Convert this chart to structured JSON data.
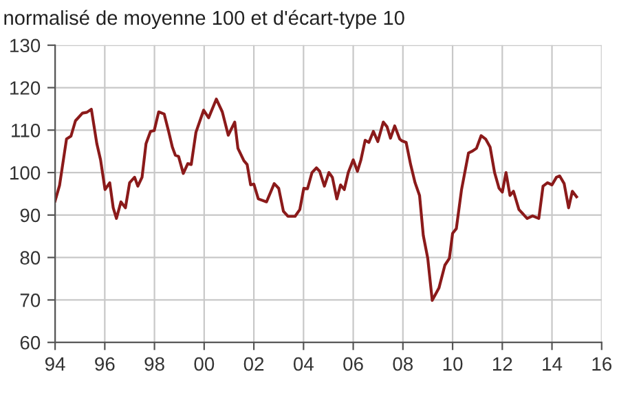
{
  "chart_data": {
    "type": "line",
    "title": "normalisé de moyenne 100 et d'écart-type 10",
    "x": [
      1994.0,
      1994.18,
      1994.46,
      1994.64,
      1994.82,
      1995.1,
      1995.28,
      1995.46,
      1995.68,
      1995.83,
      1996.01,
      1996.2,
      1996.34,
      1996.47,
      1996.65,
      1996.83,
      1997.0,
      1997.2,
      1997.33,
      1997.5,
      1997.66,
      1997.84,
      1997.99,
      1998.17,
      1998.39,
      1998.57,
      1998.72,
      1998.84,
      1998.97,
      1999.16,
      1999.34,
      1999.48,
      1999.67,
      1999.98,
      2000.18,
      2000.49,
      2000.73,
      2000.97,
      2001.23,
      2001.36,
      2001.6,
      2001.73,
      2001.87,
      2002.0,
      2002.18,
      2002.51,
      2002.82,
      2003.0,
      2003.19,
      2003.37,
      2003.66,
      2003.85,
      2004.01,
      2004.16,
      2004.34,
      2004.52,
      2004.65,
      2004.84,
      2005.02,
      2005.16,
      2005.34,
      2005.49,
      2005.64,
      2005.8,
      2006.0,
      2006.17,
      2006.31,
      2006.48,
      2006.63,
      2006.81,
      2006.99,
      2007.21,
      2007.36,
      2007.5,
      2007.67,
      2007.87,
      2007.95,
      2008.13,
      2008.31,
      2008.49,
      2008.67,
      2008.82,
      2009.0,
      2009.18,
      2009.45,
      2009.69,
      2009.87,
      2010.0,
      2010.15,
      2010.36,
      2010.64,
      2010.78,
      2010.96,
      2011.15,
      2011.33,
      2011.51,
      2011.69,
      2011.87,
      2012.0,
      2012.15,
      2012.31,
      2012.45,
      2012.67,
      2013.0,
      2013.22,
      2013.47,
      2013.64,
      2013.82,
      2014.0,
      2014.18,
      2014.31,
      2014.49,
      2014.67,
      2014.82,
      2014.99
    ],
    "series": [
      {
        "color": "#8b1a1a",
        "values": [
          93.3,
          97.0,
          107.9,
          108.6,
          112.2,
          114.0,
          114.2,
          114.9,
          106.8,
          103.0,
          96.0,
          97.6,
          91.7,
          89.2,
          93.1,
          91.7,
          97.6,
          98.9,
          96.8,
          98.9,
          106.8,
          109.7,
          109.9,
          114.3,
          113.8,
          109.7,
          106.0,
          104.1,
          103.8,
          99.8,
          102.1,
          101.9,
          109.5,
          114.7,
          112.9,
          117.3,
          114.3,
          108.8,
          111.9,
          105.7,
          102.8,
          101.9,
          97.1,
          97.3,
          93.8,
          93.1,
          97.4,
          96.3,
          90.9,
          89.7,
          89.7,
          91.3,
          96.3,
          96.2,
          100.0,
          101.1,
          100.3,
          96.8,
          100.0,
          98.9,
          93.8,
          97.1,
          96.0,
          100.0,
          103.0,
          100.3,
          103.0,
          107.6,
          107.1,
          109.7,
          107.3,
          111.9,
          110.8,
          108.1,
          111.0,
          107.9,
          107.5,
          107.1,
          101.9,
          97.6,
          94.6,
          85.2,
          79.8,
          69.9,
          72.8,
          78.2,
          79.8,
          85.7,
          86.8,
          96.0,
          104.6,
          105.0,
          105.7,
          108.7,
          107.9,
          106.0,
          100.0,
          96.3,
          95.4,
          100.0,
          94.6,
          95.6,
          91.3,
          89.2,
          89.8,
          89.2,
          96.8,
          97.6,
          97.1,
          98.9,
          99.2,
          97.4,
          91.7,
          95.6,
          94.3
        ]
      }
    ],
    "xlim": [
      1994,
      2016
    ],
    "xticks": [
      {
        "value": 1994,
        "label": "94"
      },
      {
        "value": 1996,
        "label": "96"
      },
      {
        "value": 1998,
        "label": "98"
      },
      {
        "value": 2000,
        "label": "00"
      },
      {
        "value": 2002,
        "label": "02"
      },
      {
        "value": 2004,
        "label": "04"
      },
      {
        "value": 2006,
        "label": "06"
      },
      {
        "value": 2008,
        "label": "08"
      },
      {
        "value": 2010,
        "label": "10"
      },
      {
        "value": 2012,
        "label": "12"
      },
      {
        "value": 2014,
        "label": "14"
      },
      {
        "value": 2016,
        "label": "16"
      }
    ],
    "ylim": [
      60,
      130
    ],
    "yticks": [
      60,
      70,
      80,
      90,
      100,
      110,
      120,
      130
    ],
    "grid": true,
    "marker": "none",
    "line_style": "solid"
  }
}
